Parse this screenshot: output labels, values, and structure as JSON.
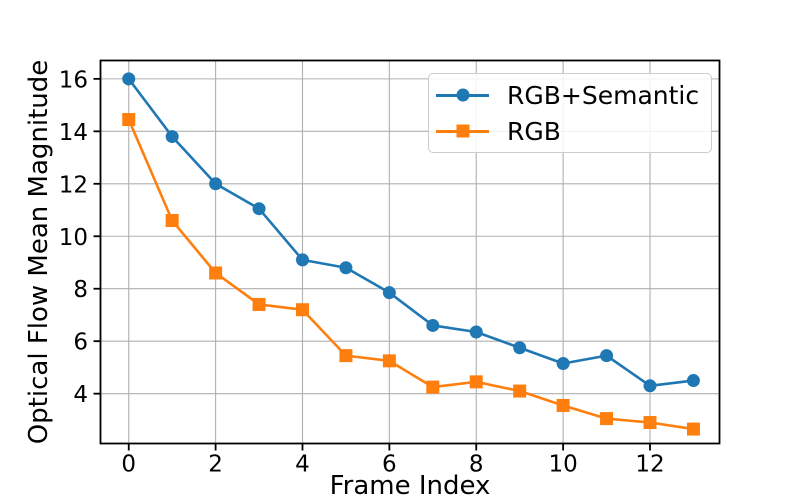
{
  "chart_data": {
    "type": "line",
    "title": "",
    "xlabel": "Frame Index",
    "ylabel": "Optical Flow Mean Magnitude",
    "x": [
      0,
      1,
      2,
      3,
      4,
      5,
      6,
      7,
      8,
      9,
      10,
      11,
      12,
      13
    ],
    "series": [
      {
        "name": "RGB+Semantic",
        "color": "#1f77b4",
        "marker": "circle",
        "values": [
          16.0,
          13.8,
          12.0,
          11.05,
          9.1,
          8.8,
          7.85,
          6.6,
          6.35,
          5.75,
          5.15,
          5.45,
          4.3,
          4.5
        ]
      },
      {
        "name": "RGB",
        "color": "#ff7f0e",
        "marker": "square",
        "values": [
          14.45,
          10.6,
          8.6,
          7.4,
          7.2,
          5.45,
          5.25,
          4.25,
          4.45,
          4.1,
          3.55,
          3.05,
          2.9,
          2.65
        ]
      }
    ],
    "x_ticks": [
      0,
      2,
      4,
      6,
      8,
      10,
      12
    ],
    "y_ticks": [
      4,
      6,
      8,
      10,
      12,
      14,
      16
    ],
    "xlim": [
      -0.65,
      13.6
    ],
    "ylim": [
      2.1,
      16.7
    ],
    "grid": true,
    "grid_color": "#b0b0b0",
    "spine_color": "#000000",
    "legend_position": "upper right"
  }
}
